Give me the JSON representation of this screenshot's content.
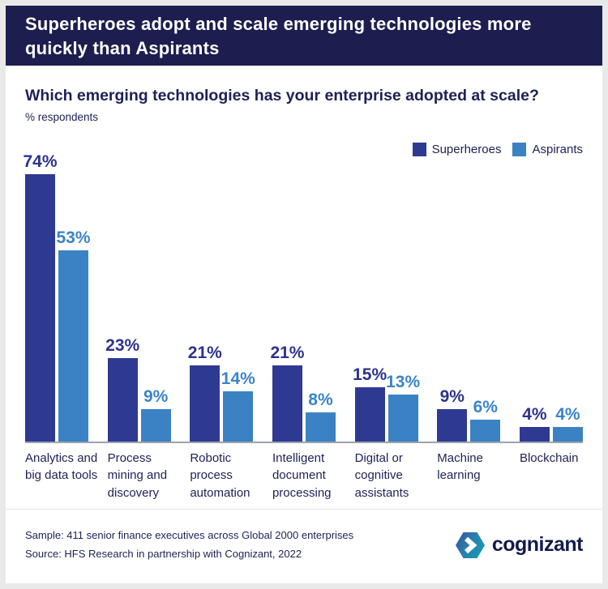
{
  "header": {
    "title": "Superheroes adopt and scale emerging technologies more quickly than Aspirants",
    "title_lines": [
      "Superheroes adopt and scale emerging technologies more",
      "quickly than Aspirants"
    ],
    "bg_color": "#1d1e4f"
  },
  "question": "Which emerging technologies has your enterprise adopted at scale?",
  "subtitle": "% respondents",
  "legend": {
    "items": [
      {
        "label": "Superheroes",
        "color": "#2e3a92"
      },
      {
        "label": "Aspirants",
        "color": "#3b82c4"
      }
    ],
    "position": "top-right"
  },
  "chart_data": {
    "type": "bar",
    "title": "Which emerging technologies has your enterprise adopted at scale?",
    "ylabel": "% respondents",
    "xlabel": "",
    "ylim": [
      0,
      80
    ],
    "grid": false,
    "legend_position": "top-right",
    "value_suffix": "%",
    "categories": [
      "Analytics and big data tools",
      "Process mining and discovery",
      "Robotic process automation",
      "Intelligent document processing",
      "Digital or cognitive assistants",
      "Machine learning",
      "Blockchain"
    ],
    "category_lines": [
      [
        "Analytics and",
        "big data tools"
      ],
      [
        "Process",
        "mining and",
        "discovery"
      ],
      [
        "Robotic",
        "process",
        "automation"
      ],
      [
        "Intelligent",
        "document",
        "processing"
      ],
      [
        "Digital or",
        "cognitive",
        "assistants"
      ],
      [
        "Machine",
        "learning"
      ],
      [
        "Blockchain"
      ]
    ],
    "series": [
      {
        "name": "Superheroes",
        "color": "#2e3a92",
        "label_color": "#2c338b",
        "values": [
          74,
          23,
          21,
          21,
          15,
          9,
          4
        ]
      },
      {
        "name": "Aspirants",
        "color": "#3b82c4",
        "label_color": "#3a85c8",
        "values": [
          53,
          9,
          14,
          8,
          13,
          6,
          4
        ]
      }
    ],
    "axis_line_color": "#9ba3ae"
  },
  "footer": {
    "sample": "Sample: 411 senior finance executives across Global 2000 enterprises",
    "source": "Source: HFS Research in partnership with Cognizant, 2022",
    "logo_text": "cognizant"
  }
}
